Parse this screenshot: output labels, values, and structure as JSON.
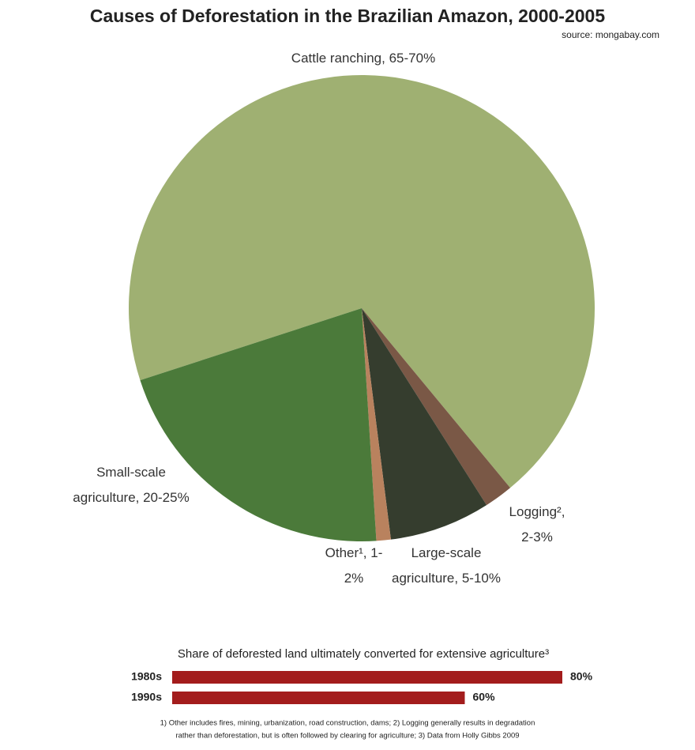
{
  "chart_data": [
    {
      "type": "pie",
      "title": "Causes of Deforestation in the Brazilian Amazon, 2000-2005",
      "subtitle": "source: mongabay.com",
      "categories": [
        "Cattle ranching, 65-70%",
        "Logging², 2-3%",
        "Large-scale agriculture, 5-10%",
        "Other¹, 1-2%",
        "Small-scale agriculture, 20-25%"
      ],
      "values": [
        69,
        2,
        7,
        1,
        21
      ],
      "colors": [
        "#9fb072",
        "#7a5846",
        "#353d2e",
        "#b9825e",
        "#4b7a3a"
      ],
      "startangle": 252
    },
    {
      "type": "barh",
      "title": "Share of deforested land ultimately converted for extensive agriculture³",
      "categories": [
        "1980s",
        "1990s"
      ],
      "values": [
        80,
        60
      ],
      "value_labels": [
        "80%",
        "60%"
      ],
      "color": "#a31c1c"
    }
  ],
  "footnotes": [
    "1) Other includes fires, mining, urbanization, road construction, dams; 2) Logging generally results in degradation",
    "rather than deforestation, but is often followed by clearing for agriculture; 3) Data from Holly Gibbs 2009"
  ]
}
